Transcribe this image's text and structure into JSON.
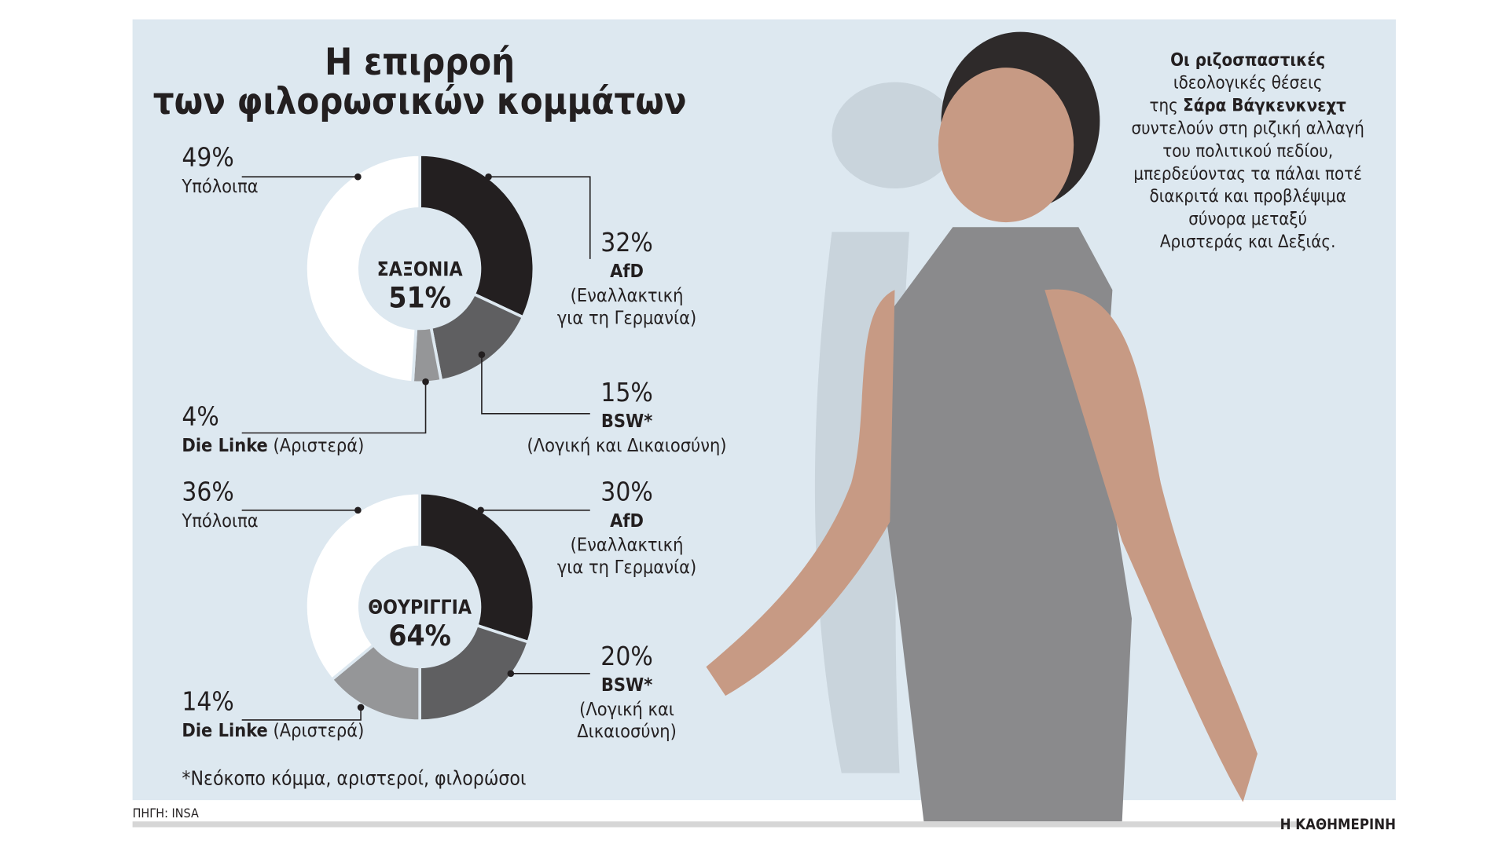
{
  "title": [
    "Η επιρροή",
    "των φιλορωσικών κομμάτων"
  ],
  "quote": [
    [
      {
        "text": "Οι ριζοσπαστικές",
        "bold": true
      }
    ],
    [
      {
        "text": "ιδεολογικές θέσεις"
      }
    ],
    [
      {
        "text": "της "
      },
      {
        "text": "Σάρα Βάγκενκνεχτ",
        "bold": true
      }
    ],
    [
      {
        "text": "συντελούν στη ριζική αλλαγή"
      }
    ],
    [
      {
        "text": "του πολιτικού πεδίου,"
      }
    ],
    [
      {
        "text": "μπερδεύοντας τα πάλαι ποτέ"
      }
    ],
    [
      {
        "text": "διακριτά και προβλέψιμα"
      }
    ],
    [
      {
        "text": "σύνορα μεταξύ"
      }
    ],
    [
      {
        "text": "Αριστεράς και Δεξιάς."
      }
    ]
  ],
  "footnote": "*Νεόκοπο κόμμα, αριστεροί, φιλορώσοι",
  "source": "ΠΗΓΗ: INSA",
  "publisher": "Η ΚΑΘΗΜΕΡΙΝΗ",
  "chart_data": [
    {
      "type": "donut",
      "center_label": "ΣΑΞΟΝΙΑ",
      "center_value": 51,
      "center_value_label": "51%",
      "categories": [
        "AfD",
        "BSW*",
        "Die Linke",
        "Υπόλοιπα"
      ],
      "descriptions": [
        [
          "(Εναλλακτική",
          "για τη Γερμανία)"
        ],
        [
          "(Λογική και Δικαιοσύνη)"
        ],
        "(Αριστερά)",
        null
      ],
      "values": [
        32,
        15,
        4,
        49
      ],
      "value_labels": [
        "32%",
        "15%",
        "4%",
        "49%"
      ],
      "colors": [
        "#231f20",
        "#5f5f61",
        "#959698",
        "#ffffff"
      ]
    },
    {
      "type": "donut",
      "center_label": "ΘΟΥΡΙΓΓΙΑ",
      "center_value": 64,
      "center_value_label": "64%",
      "categories": [
        "AfD",
        "BSW*",
        "Die Linke",
        "Υπόλοιπα"
      ],
      "descriptions": [
        [
          "(Εναλλακτική",
          "για τη Γερμανία)"
        ],
        [
          "(Λογική και",
          "Δικαιοσύνη)"
        ],
        "(Αριστερά)",
        null
      ],
      "values": [
        30,
        20,
        14,
        36
      ],
      "value_labels": [
        "30%",
        "20%",
        "14%",
        "36%"
      ],
      "colors": [
        "#231f20",
        "#5f5f61",
        "#959698",
        "#ffffff"
      ]
    }
  ]
}
